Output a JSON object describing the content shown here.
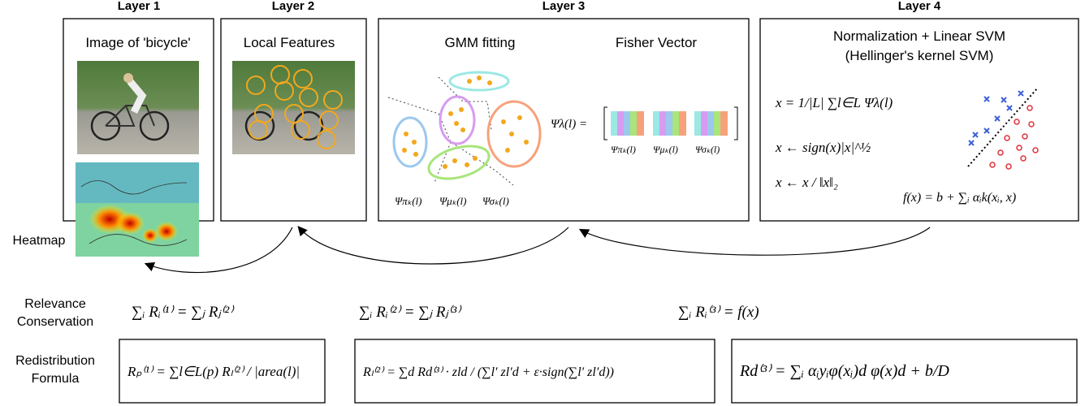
{
  "layers": [
    {
      "header": "Layer 1",
      "title": "Image of 'bicycle'"
    },
    {
      "header": "Layer 2",
      "title": "Local Features"
    },
    {
      "header": "Layer 3",
      "titles": [
        "GMM fitting",
        "Fisher Vector"
      ],
      "gmm_labels": [
        "Ψπₖ(l)",
        "Ψμₖ(l)",
        "Ψσₖ(l)"
      ],
      "fisher_formula": "Ψλ(l) =",
      "fisher_labels": [
        "Ψπₖ(l)",
        "Ψμₖ(l)",
        "Ψσₖ(l)"
      ]
    },
    {
      "header": "Layer 4",
      "titles": [
        "Normalization + Linear SVM",
        "(Hellinger's kernel SVM)"
      ],
      "formulas": [
        "x = 1/|L| ∑l∈L Ψλ(l)",
        "x ← sign(x)|x|^½",
        "x ← x / ‖x‖₂"
      ],
      "decision": "f(x) = b + ∑ᵢ αᵢk(xᵢ, x)"
    }
  ],
  "heatmap_label": "Heatmap",
  "rows": [
    {
      "label": [
        "Relevance",
        "Conservation"
      ],
      "formulas": [
        "∑ᵢ Rᵢ⁽¹⁾ = ∑ⱼ Rⱼ⁽²⁾",
        "∑ᵢ Rᵢ⁽²⁾ = ∑ⱼ Rⱼ⁽³⁾",
        "∑ᵢ Rᵢ⁽³⁾ = f(x)"
      ]
    },
    {
      "label": [
        "Redistribution",
        "Formula"
      ],
      "formulas": [
        "Rₚ⁽¹⁾ = ∑l∈L(p) Rₗ⁽²⁾ / |area(l)|",
        "Rₗ⁽²⁾ = ∑d Rd⁽³⁾ · zld / (∑l′ zl′d + ε·sign(∑l′ zl′d))",
        "Rd⁽³⁾ = ∑ᵢ αᵢyᵢφ(xᵢ)d φ(x)d + b/D"
      ]
    }
  ]
}
